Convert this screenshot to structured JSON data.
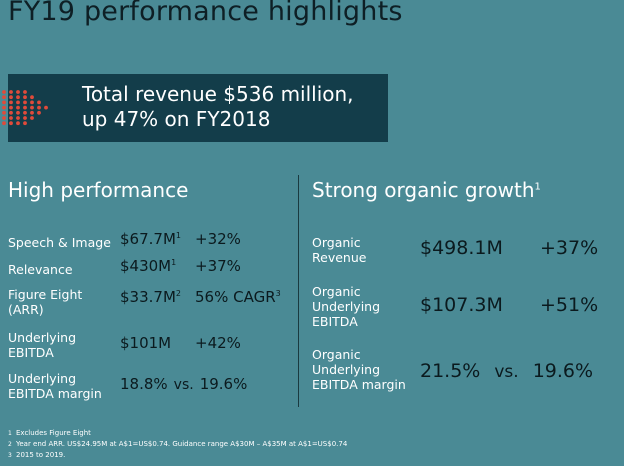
{
  "title": "FY19 performance highlights",
  "banner": {
    "line1": "Total revenue $536 million,",
    "line2": "up 47% on FY2018",
    "dot_color": "#e04a3a"
  },
  "left": {
    "heading": "High performance",
    "rows": [
      {
        "label_1": "Speech & Image",
        "label_2": "",
        "value": "$67.7M",
        "value_note": "1",
        "change": "+32%",
        "change_note": "",
        "vs": ""
      },
      {
        "label_1": "Relevance",
        "label_2": "",
        "value": "$430M",
        "value_note": "1",
        "change": "+37%",
        "change_note": "",
        "vs": ""
      },
      {
        "label_1": "Figure Eight",
        "label_2": "(ARR)",
        "value": "$33.7M",
        "value_note": "2",
        "change": "56% CAGR",
        "change_note": "3",
        "vs": ""
      },
      {
        "label_1": "Underlying",
        "label_2": "EBITDA",
        "value": "$101M",
        "value_note": "",
        "change": "+42%",
        "change_note": "",
        "vs": ""
      },
      {
        "label_1": "Underlying",
        "label_2": "EBITDA margin",
        "value": "18.8%",
        "value_note": "",
        "change": "19.6%",
        "change_note": "",
        "vs": "vs."
      }
    ]
  },
  "right": {
    "heading": "Strong organic growth",
    "heading_note": "1",
    "rows": [
      {
        "label_1": "Organic",
        "label_2": "Revenue",
        "label_3": "",
        "value": "$498.1M",
        "vs": "",
        "change": "+37%"
      },
      {
        "label_1": "Organic",
        "label_2": "Underlying",
        "label_3": "EBITDA",
        "value": "$107.3M",
        "vs": "",
        "change": "+51%"
      },
      {
        "label_1": "Organic",
        "label_2": "Underlying",
        "label_3": "EBITDA margin",
        "value": "21.5%",
        "vs": "vs.",
        "change": "19.6%"
      }
    ]
  },
  "footnotes": [
    {
      "mark": "1",
      "text": "Excludes Figure Eight"
    },
    {
      "mark": "2",
      "text": "Year end ARR. US$24.95M at A$1=US$0.74. Guidance range A$30M – A$35M at A$1=US$0.74"
    },
    {
      "mark": "3",
      "text": "2015 to 2019."
    }
  ]
}
